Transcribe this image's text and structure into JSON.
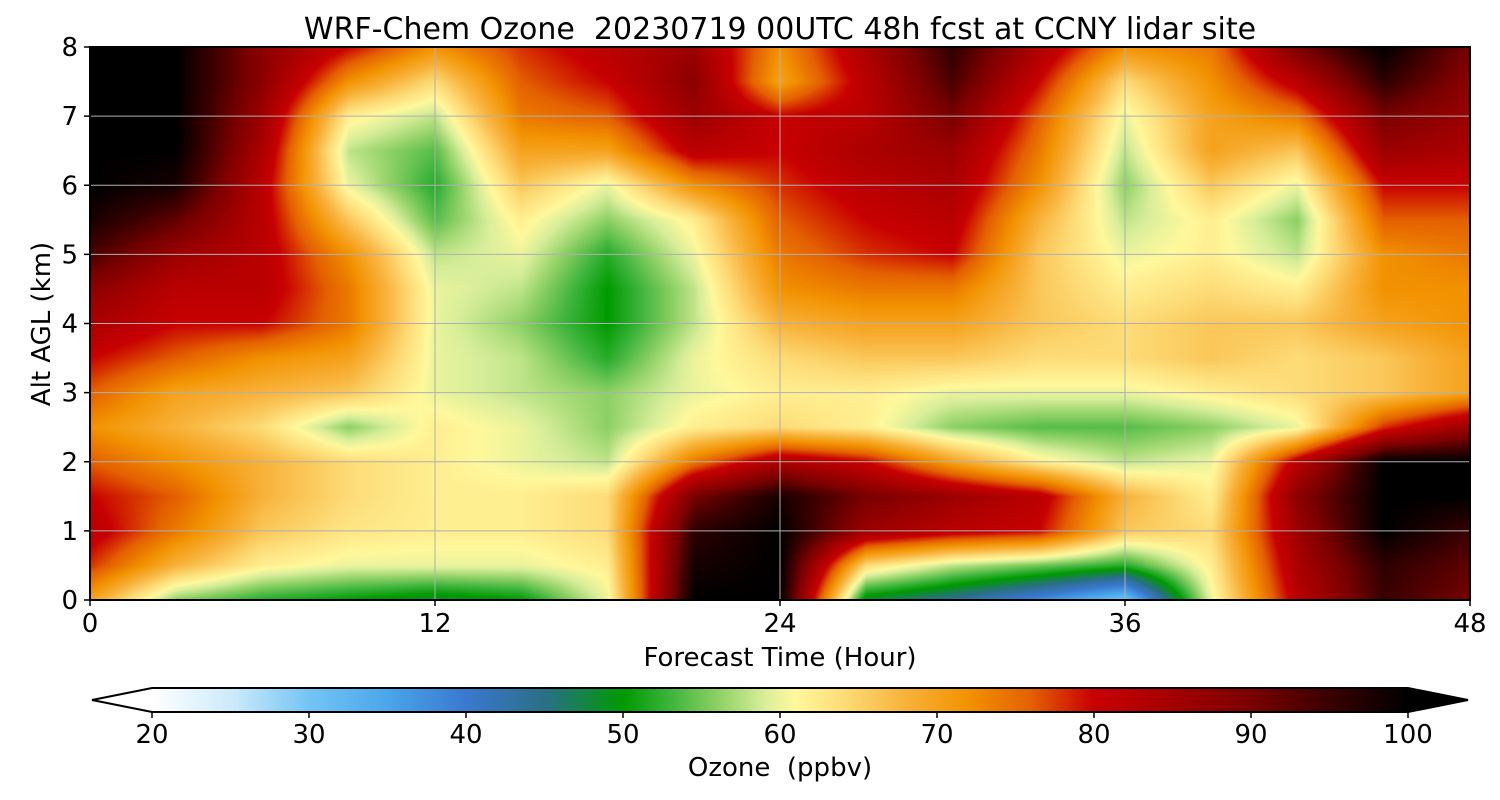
{
  "chart_data": {
    "type": "heatmap",
    "title": "WRF-Chem Ozone  20230719 00UTC 48h fcst at CCNY lidar site",
    "xlabel": "Forecast Time (Hour)",
    "ylabel": "Alt AGL (km)",
    "xlim": [
      0,
      48
    ],
    "ylim": [
      0,
      8
    ],
    "xticks": [
      0,
      12,
      24,
      36,
      48
    ],
    "yticks": [
      0,
      1,
      2,
      3,
      4,
      5,
      6,
      7,
      8
    ],
    "grid": true,
    "x": [
      0,
      3,
      6,
      9,
      12,
      15,
      18,
      21,
      24,
      27,
      30,
      33,
      36,
      39,
      42,
      45,
      48
    ],
    "y": [
      0,
      0.5,
      1,
      1.5,
      2,
      2.5,
      3,
      3.5,
      4,
      4.5,
      5,
      5.5,
      6,
      6.5,
      7,
      7.5,
      8
    ],
    "z": [
      [
        70,
        56,
        52,
        50,
        48,
        50,
        60,
        100,
        100,
        48,
        44,
        38,
        30,
        60,
        82,
        95,
        90
      ],
      [
        78,
        68,
        62,
        60,
        60,
        60,
        62,
        98,
        100,
        64,
        58,
        55,
        52,
        62,
        84,
        96,
        92
      ],
      [
        82,
        74,
        66,
        63,
        62,
        62,
        64,
        96,
        100,
        86,
        82,
        80,
        66,
        64,
        86,
        100,
        95
      ],
      [
        80,
        76,
        68,
        64,
        62,
        62,
        64,
        90,
        98,
        90,
        86,
        82,
        68,
        62,
        88,
        100,
        100
      ],
      [
        76,
        72,
        68,
        64,
        62,
        60,
        58,
        74,
        84,
        80,
        70,
        62,
        58,
        60,
        82,
        100,
        100
      ],
      [
        72,
        68,
        64,
        56,
        62,
        60,
        56,
        62,
        64,
        62,
        56,
        54,
        54,
        56,
        60,
        78,
        86
      ],
      [
        76,
        70,
        68,
        66,
        60,
        58,
        56,
        60,
        62,
        62,
        60,
        60,
        60,
        62,
        64,
        66,
        70
      ],
      [
        80,
        76,
        72,
        70,
        60,
        58,
        52,
        60,
        64,
        66,
        66,
        64,
        64,
        66,
        64,
        66,
        70
      ],
      [
        84,
        80,
        80,
        74,
        60,
        56,
        50,
        58,
        68,
        70,
        70,
        66,
        64,
        66,
        66,
        70,
        72
      ],
      [
        88,
        82,
        82,
        74,
        60,
        58,
        50,
        58,
        72,
        74,
        74,
        66,
        62,
        64,
        62,
        72,
        72
      ],
      [
        94,
        86,
        82,
        72,
        58,
        60,
        52,
        60,
        74,
        78,
        80,
        66,
        60,
        62,
        58,
        72,
        74
      ],
      [
        98,
        92,
        82,
        66,
        54,
        62,
        56,
        62,
        76,
        80,
        82,
        68,
        58,
        62,
        56,
        76,
        76
      ],
      [
        100,
        98,
        82,
        60,
        52,
        66,
        60,
        72,
        78,
        82,
        84,
        72,
        56,
        66,
        60,
        80,
        80
      ],
      [
        100,
        100,
        84,
        58,
        54,
        70,
        70,
        82,
        80,
        84,
        86,
        74,
        58,
        70,
        66,
        86,
        84
      ],
      [
        100,
        100,
        86,
        62,
        58,
        74,
        76,
        86,
        80,
        82,
        90,
        76,
        60,
        70,
        74,
        90,
        86
      ],
      [
        100,
        100,
        88,
        72,
        64,
        76,
        80,
        88,
        70,
        82,
        94,
        80,
        64,
        72,
        82,
        96,
        88
      ],
      [
        100,
        100,
        88,
        80,
        72,
        78,
        82,
        86,
        72,
        84,
        96,
        84,
        72,
        74,
        90,
        100,
        90
      ]
    ],
    "colorbar": {
      "label": "Ozone  (ppbv)",
      "range": [
        20,
        100
      ],
      "ticks": [
        20,
        30,
        40,
        50,
        60,
        70,
        80,
        90,
        100
      ],
      "extend": "both",
      "orientation": "horizontal",
      "position": "bottom",
      "stops": [
        {
          "value": 20,
          "color": "#ffffff"
        },
        {
          "value": 25,
          "color": "#cdebfa"
        },
        {
          "value": 30,
          "color": "#74c4f5"
        },
        {
          "value": 35,
          "color": "#4aa6ea"
        },
        {
          "value": 40,
          "color": "#3a78cf"
        },
        {
          "value": 45,
          "color": "#2a6f86"
        },
        {
          "value": 50,
          "color": "#009a00"
        },
        {
          "value": 53,
          "color": "#3cb43c"
        },
        {
          "value": 56,
          "color": "#8cd064"
        },
        {
          "value": 59,
          "color": "#d8ee9a"
        },
        {
          "value": 61,
          "color": "#fff89c"
        },
        {
          "value": 64,
          "color": "#fddc78"
        },
        {
          "value": 68,
          "color": "#f8b23a"
        },
        {
          "value": 72,
          "color": "#f29200"
        },
        {
          "value": 76,
          "color": "#e46000"
        },
        {
          "value": 80,
          "color": "#c80000"
        },
        {
          "value": 85,
          "color": "#a40000"
        },
        {
          "value": 90,
          "color": "#7a0000"
        },
        {
          "value": 95,
          "color": "#3a0000"
        },
        {
          "value": 100,
          "color": "#000000"
        }
      ]
    }
  }
}
